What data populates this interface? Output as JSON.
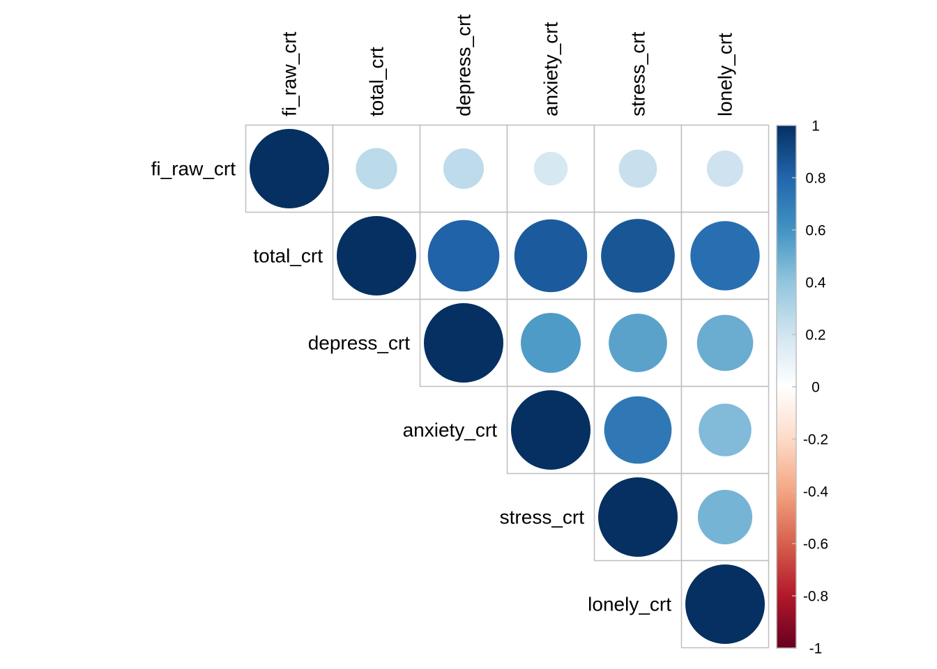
{
  "chart_data": {
    "type": "heatmap",
    "style": "corrplot-circle-upper-triangle",
    "variables": [
      "fi_raw_crt",
      "total_crt",
      "depress_crt",
      "anxiety_crt",
      "stress_crt",
      "lonely_crt"
    ],
    "matrix": [
      [
        1.0,
        0.27,
        0.26,
        0.18,
        0.23,
        0.21
      ],
      [
        null,
        1.0,
        0.81,
        0.84,
        0.86,
        0.76
      ],
      [
        null,
        null,
        1.0,
        0.57,
        0.54,
        0.5
      ],
      [
        null,
        null,
        null,
        1.0,
        0.72,
        0.44
      ],
      [
        null,
        null,
        null,
        null,
        1.0,
        0.47
      ],
      [
        null,
        null,
        null,
        null,
        null,
        1.0
      ]
    ],
    "colorbar": {
      "range": [
        -1,
        1
      ],
      "ticks": [
        "1",
        "0.8",
        "0.6",
        "0.4",
        "0.2",
        "0",
        "-0.2",
        "-0.4",
        "-0.6",
        "-0.8",
        "-1"
      ],
      "tick_values": [
        1,
        0.8,
        0.6,
        0.4,
        0.2,
        0,
        -0.2,
        -0.4,
        -0.6,
        -0.8,
        -1
      ],
      "colors": [
        "#67001F",
        "#B2182B",
        "#D6604D",
        "#F4A582",
        "#FDDBC7",
        "#FFFFFF",
        "#D1E5F0",
        "#92C5DE",
        "#4393C3",
        "#2166AC",
        "#053061"
      ],
      "placement": "right"
    },
    "grid": true,
    "grid_color": "#BEBEBE"
  }
}
